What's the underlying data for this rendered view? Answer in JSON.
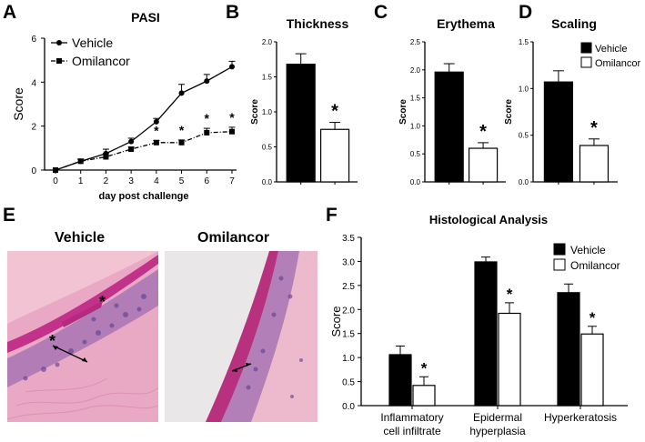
{
  "panels": {
    "A": "A",
    "B": "B",
    "C": "C",
    "D": "D",
    "E": "E",
    "F": "F"
  },
  "histology": {
    "vehicle_label": "Vehicle",
    "omilancor_label": "Omilancor",
    "asterisk": "*"
  },
  "chart_data": [
    {
      "id": "A",
      "type": "line",
      "title": "PASI",
      "xlabel": "day post challenge",
      "ylabel": "Score",
      "x": [
        0,
        1,
        2,
        3,
        4,
        5,
        6,
        7
      ],
      "xticks": [
        "0",
        "1",
        "2",
        "3",
        "4",
        "5",
        "6",
        "7"
      ],
      "ylim": [
        0,
        6
      ],
      "yticks": [
        "0",
        "2",
        "4",
        "6"
      ],
      "legend_position": "top-left",
      "series": [
        {
          "name": "Vehicle",
          "marker": "circle",
          "line": "solid",
          "values": [
            0,
            0.4,
            0.75,
            1.3,
            2.2,
            3.5,
            4.05,
            4.7
          ],
          "errors": [
            0,
            0.1,
            0.2,
            0.15,
            0.15,
            0.4,
            0.3,
            0.25
          ]
        },
        {
          "name": "Omilancor",
          "marker": "square",
          "line": "dash-dot",
          "values": [
            0,
            0.4,
            0.6,
            0.95,
            1.25,
            1.25,
            1.7,
            1.75
          ],
          "errors": [
            0,
            0.1,
            0.15,
            0.1,
            0.1,
            0.12,
            0.2,
            0.2
          ]
        }
      ],
      "significance": [
        4,
        5,
        6,
        7
      ]
    },
    {
      "id": "B",
      "type": "bar",
      "title": "Thickness",
      "ylabel": "Score",
      "ylim": [
        0,
        2
      ],
      "yticks": [
        "0.0",
        "0.5",
        "1.0",
        "1.5",
        "2.0"
      ],
      "series": [
        {
          "name": "Vehicle",
          "values": [
            1.68
          ],
          "errors": [
            0.15
          ],
          "fill": "#000000"
        },
        {
          "name": "Omilancor",
          "values": [
            0.75
          ],
          "errors": [
            0.1
          ],
          "fill": "#ffffff"
        }
      ],
      "significance": [
        "*"
      ]
    },
    {
      "id": "C",
      "type": "bar",
      "title": "Erythema",
      "ylabel": "Score",
      "ylim": [
        0,
        2.5
      ],
      "yticks": [
        "0.0",
        "0.5",
        "1.0",
        "1.5",
        "2.0",
        "2.5"
      ],
      "series": [
        {
          "name": "Vehicle",
          "values": [
            1.96
          ],
          "errors": [
            0.15
          ],
          "fill": "#000000"
        },
        {
          "name": "Omilancor",
          "values": [
            0.6
          ],
          "errors": [
            0.1
          ],
          "fill": "#ffffff"
        }
      ],
      "significance": [
        "*"
      ]
    },
    {
      "id": "D",
      "type": "bar",
      "title": "Scaling",
      "ylabel": "Score",
      "ylim": [
        0,
        1.5
      ],
      "yticks": [
        "0.0",
        "0.5",
        "1.0",
        "1.5"
      ],
      "legend_position": "top-right",
      "series": [
        {
          "name": "Vehicle",
          "values": [
            1.07
          ],
          "errors": [
            0.12
          ],
          "fill": "#000000"
        },
        {
          "name": "Omilancor",
          "values": [
            0.39
          ],
          "errors": [
            0.07
          ],
          "fill": "#ffffff"
        }
      ],
      "significance": [
        "*"
      ]
    },
    {
      "id": "F",
      "type": "bar",
      "title": "Histological Analysis",
      "ylabel": "Score",
      "ylim": [
        0,
        3.5
      ],
      "yticks": [
        "0.0",
        "0.5",
        "1.0",
        "1.5",
        "2.0",
        "2.5",
        "3.0",
        "3.5"
      ],
      "categories": [
        [
          "Inflammatory",
          "cell infiltrate"
        ],
        [
          "Epidermal",
          "hyperplasia"
        ],
        [
          "Hyperkeratosis"
        ]
      ],
      "legend_position": "top-right",
      "series": [
        {
          "name": "Vehicle",
          "values": [
            1.06,
            2.99,
            2.35
          ],
          "errors": [
            0.18,
            0.1,
            0.18
          ],
          "fill": "#000000"
        },
        {
          "name": "Omilancor",
          "values": [
            0.42,
            1.92,
            1.49
          ],
          "errors": [
            0.18,
            0.22,
            0.16
          ],
          "fill": "#ffffff"
        }
      ],
      "significance": [
        "*",
        "*",
        "*"
      ]
    }
  ]
}
